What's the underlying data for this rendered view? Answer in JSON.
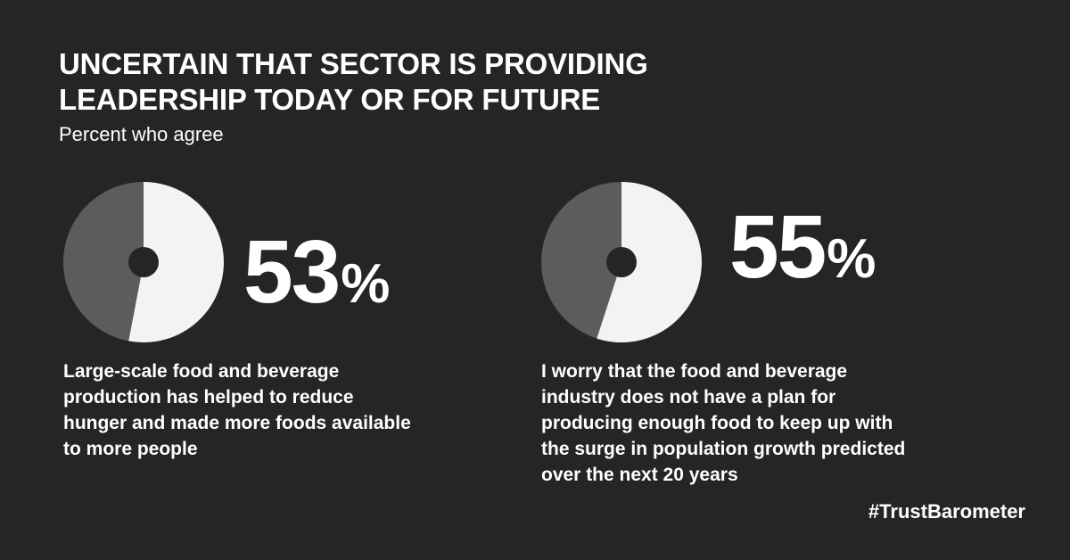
{
  "title_lines": [
    "UNCERTAIN THAT SECTOR IS PROVIDING",
    "LEADERSHIP TODAY OR FOR FUTURE"
  ],
  "subtitle": "Percent who agree",
  "colors": {
    "background": "#252525",
    "agree": "#f3f3f3",
    "rest": "#5c5c5c",
    "hole": "#252525",
    "text": "#ffffff"
  },
  "chart_data": [
    {
      "type": "pie",
      "title": "",
      "values": [
        53,
        47
      ],
      "percent_label": "53",
      "percent_sign": "%",
      "description": "Large-scale food and beverage production has helped to reduce hunger and made more foods available to more people"
    },
    {
      "type": "pie",
      "title": "",
      "values": [
        55,
        45
      ],
      "percent_label": "55",
      "percent_sign": "%",
      "description": "I worry that the food and beverage industry does not have a plan for producing enough food to keep up with the surge in population growth predicted over the next 20 years"
    }
  ],
  "hashtag": "#TrustBarometer"
}
